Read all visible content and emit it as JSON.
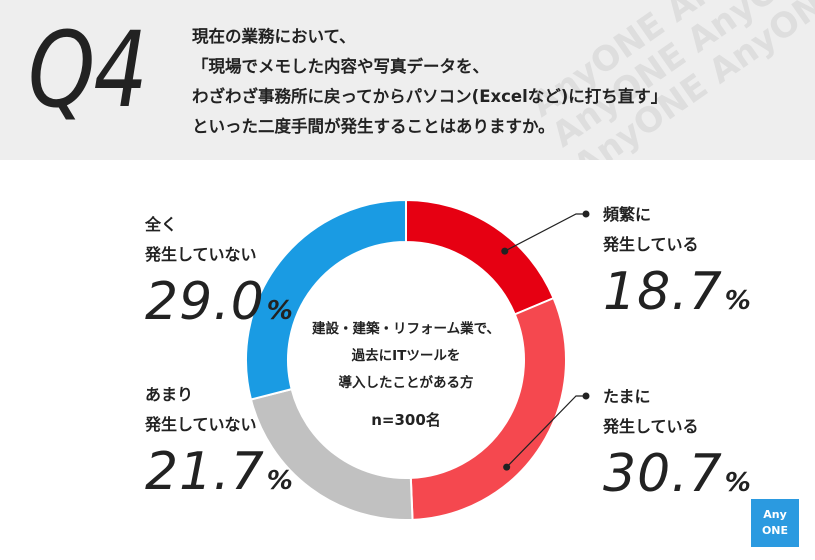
{
  "question": {
    "label": "Q4",
    "lines": [
      "現在の業務において、",
      "「現場でメモした内容や写真データを、",
      "わざわざ事務所に戻ってからパソコン(Excelなど)に打ち直す」",
      "といった二度手間が発生することはありますか。"
    ]
  },
  "watermark": [
    "AnyONE AnyONE",
    "AnyONE AnyONE",
    "AnyONE AnyONE"
  ],
  "chart_data": {
    "type": "pie",
    "donut": true,
    "categories": [
      "頻繁に発生している",
      "たまに発生している",
      "あまり発生していない",
      "全く発生していない"
    ],
    "values": [
      18.7,
      30.7,
      21.7,
      29.0
    ],
    "unit": "%",
    "colors": [
      "#e60012",
      "#f5484f",
      "#c1c1c1",
      "#1a9be3"
    ],
    "labels": [
      {
        "lines": [
          "頻繁に",
          "発生している"
        ],
        "value": "18.7",
        "unit": "%"
      },
      {
        "lines": [
          "たまに",
          "発生している"
        ],
        "value": "30.7",
        "unit": "%"
      },
      {
        "lines": [
          "あまり",
          "発生していない"
        ],
        "value": "21.7",
        "unit": "%"
      },
      {
        "lines": [
          "全く",
          "発生していない"
        ],
        "value": "29.0",
        "unit": "%"
      }
    ],
    "center": {
      "lines": [
        "建設・建築・リフォーム業で、",
        "過去にITツールを",
        "導入したことがある方"
      ],
      "n": "n=300名"
    }
  },
  "logo": {
    "line1": "Any",
    "line2": "ONE",
    "color": "#2b9ae0"
  }
}
